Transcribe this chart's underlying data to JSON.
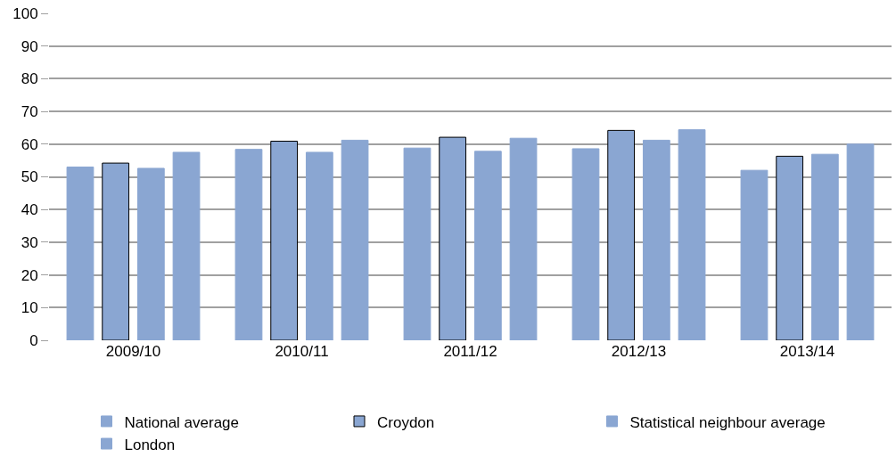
{
  "chart_data": {
    "type": "bar",
    "categories": [
      "2009/10",
      "2010/11",
      "2011/12",
      "2012/13",
      "2013/14"
    ],
    "series": [
      {
        "name": "National average",
        "color": "#8aa6d2",
        "values": [
          53.0,
          58.4,
          58.8,
          58.6,
          52.0
        ]
      },
      {
        "name": "Croydon",
        "color": "#8aa6d2",
        "values": [
          54.2,
          60.9,
          62.1,
          64.2,
          56.3
        ]
      },
      {
        "name": "Statistical neighbour average",
        "color": "#8aa6d2",
        "values": [
          52.6,
          57.5,
          57.8,
          61.2,
          56.9
        ]
      },
      {
        "name": "London",
        "color": "#8aa6d2",
        "values": [
          57.5,
          61.2,
          61.8,
          64.4,
          60.0
        ]
      }
    ],
    "ylim": [
      0,
      100
    ],
    "yticks": [
      0,
      10,
      20,
      30,
      40,
      50,
      60,
      70,
      80,
      90,
      100
    ],
    "grid": "y",
    "legend": "bottom"
  }
}
